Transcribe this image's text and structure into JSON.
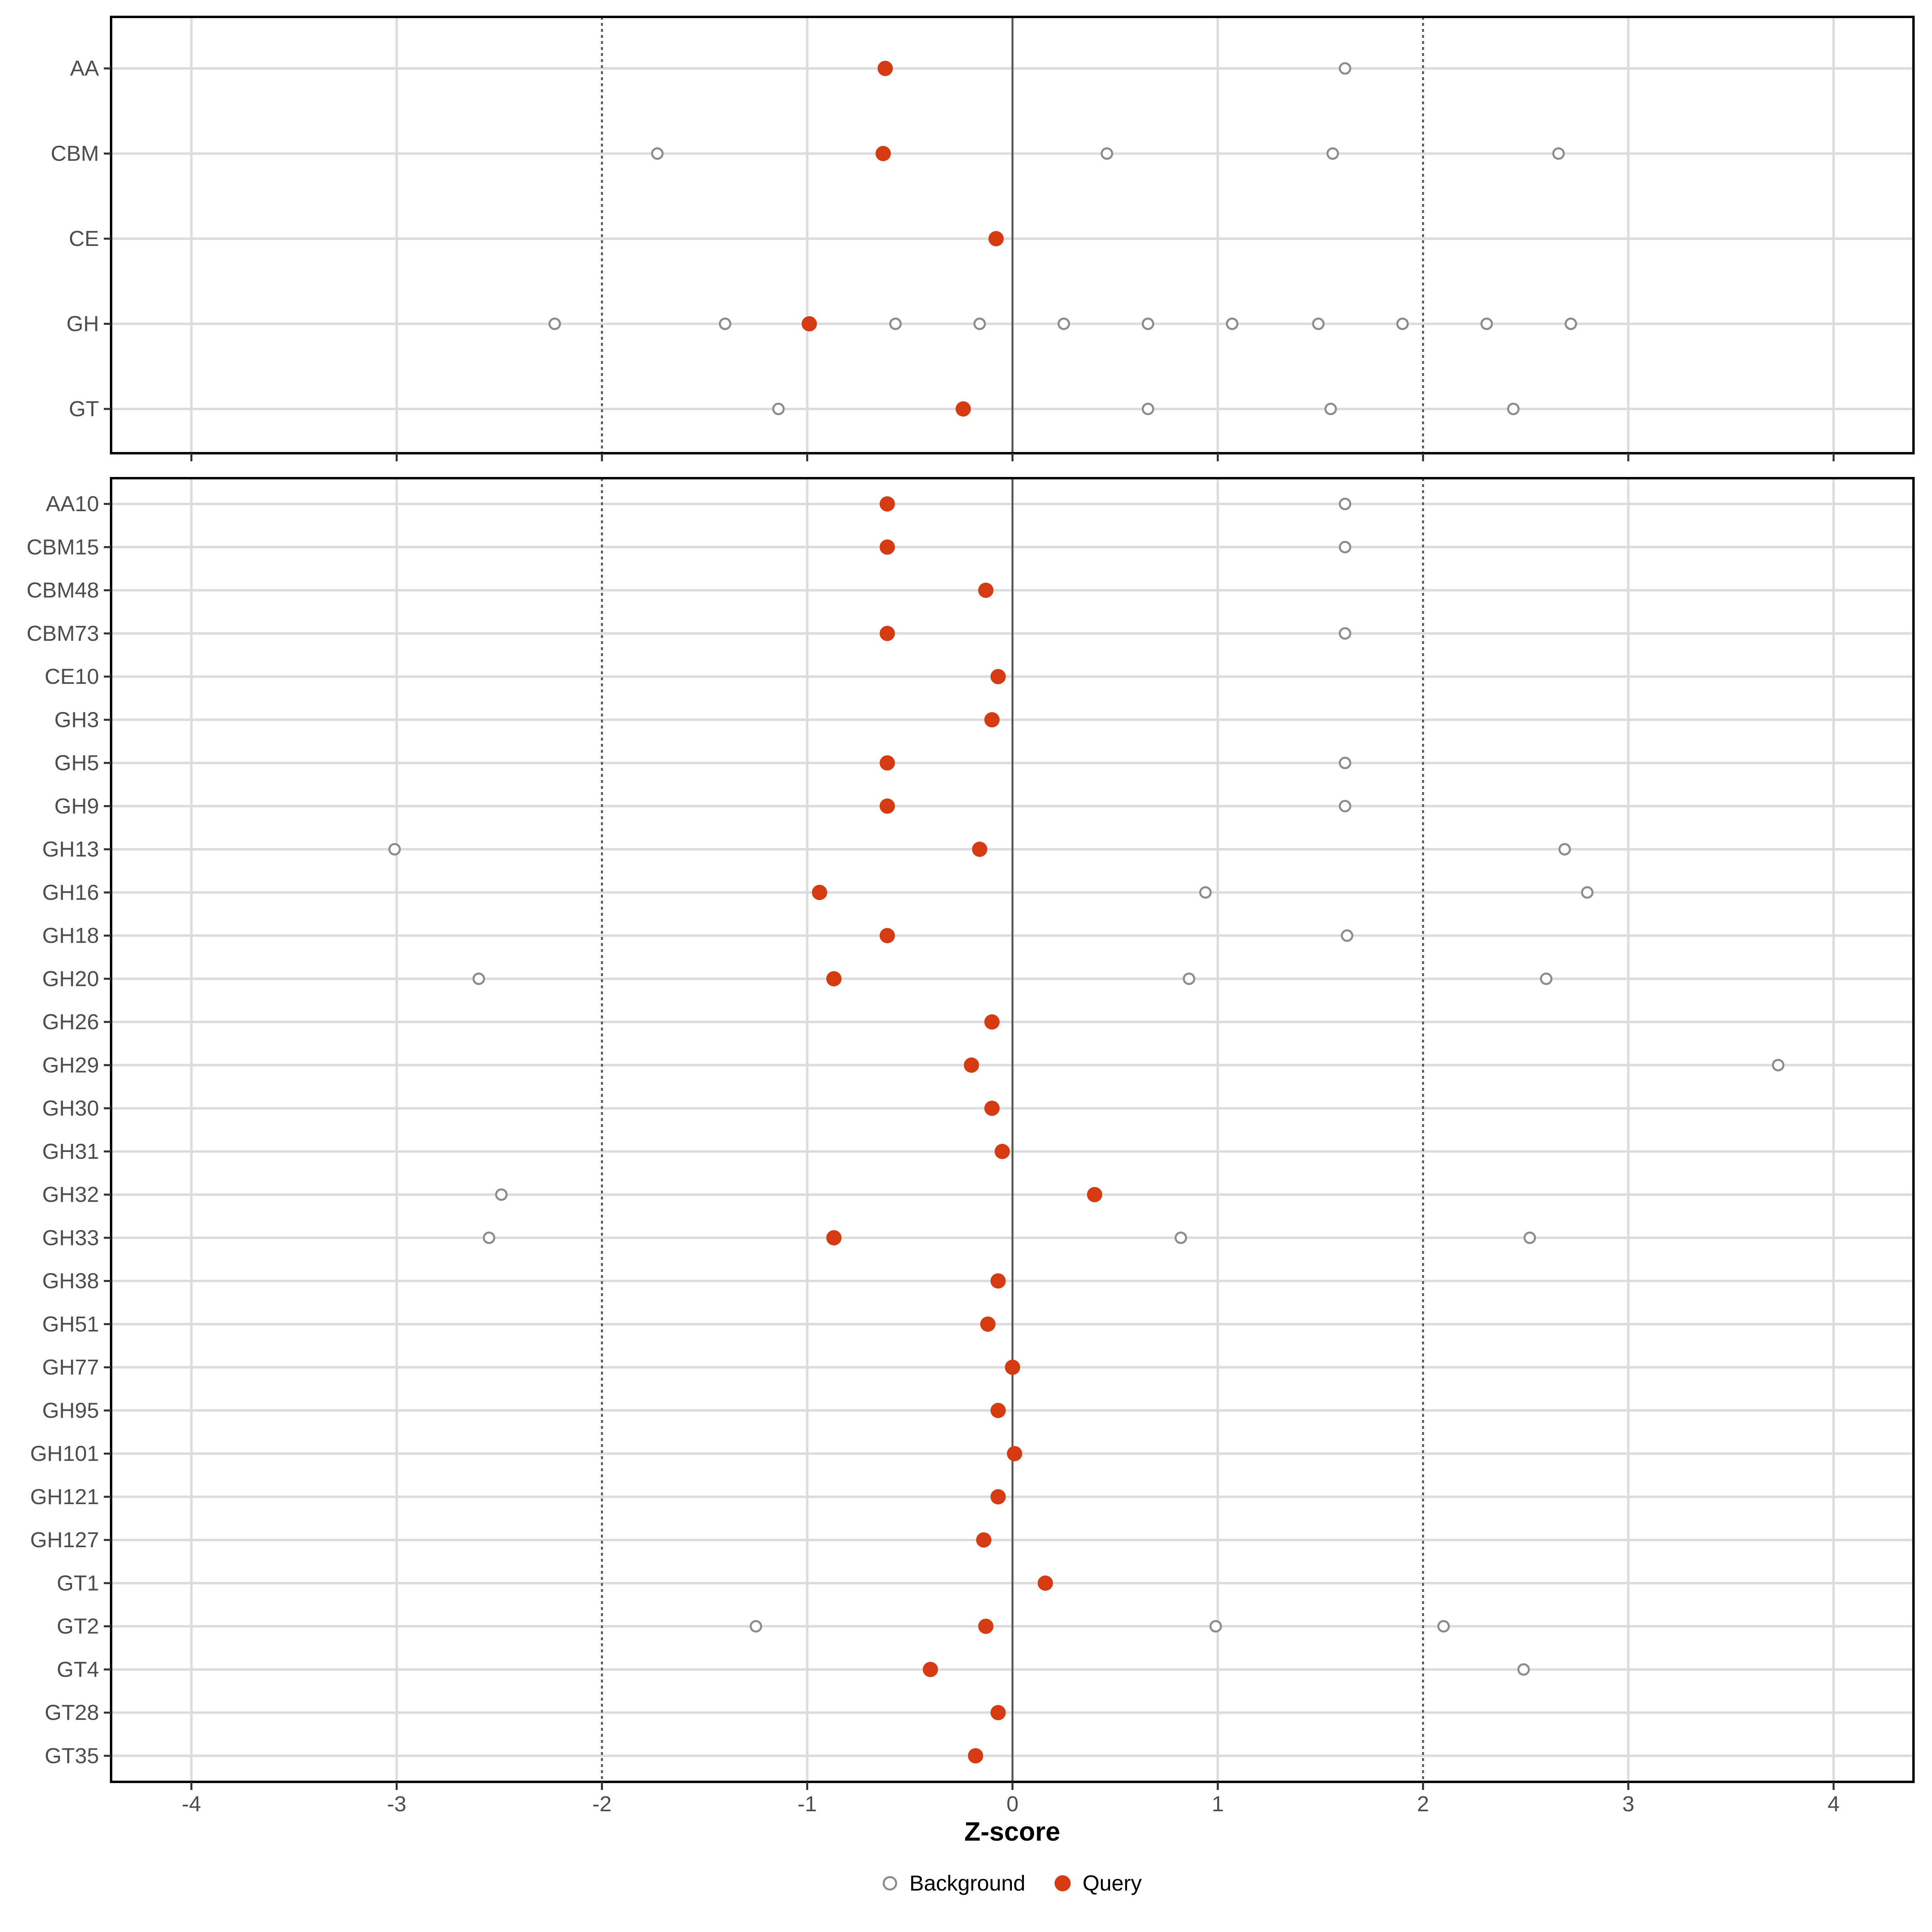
{
  "x_axis": {
    "label": "Z-score",
    "ticks": [
      -4,
      -3,
      -2,
      -1,
      0,
      1,
      2,
      3,
      4
    ],
    "xlim": [
      -4.39,
      4.39
    ],
    "zero_line": 0,
    "dashed_lines": [
      -2,
      2
    ]
  },
  "legend": {
    "position": "bottom",
    "items": [
      {
        "label": "Background",
        "marker": "open-circle",
        "color": "#8C8C8C"
      },
      {
        "label": "Query",
        "marker": "filled-circle",
        "color": "#D63A10"
      }
    ]
  },
  "colors": {
    "query": "#D63A10",
    "background_stroke": "#8C8C8C",
    "grid": "#DCDCDC",
    "reference_line": "#595959",
    "axis_text": "#4D4D4D",
    "panel_border": "#000000",
    "tick_mark": "#333333"
  },
  "chart_data": [
    {
      "type": "scatter",
      "panel": "cazyme-classes",
      "title": "",
      "xlabel": "Z-score",
      "xlim": [
        -4.39,
        4.39
      ],
      "grid": true,
      "categories": [
        "AA",
        "CBM",
        "CE",
        "GH",
        "GT"
      ],
      "series": [
        {
          "name": "Query",
          "values": [
            -0.62,
            -0.63,
            -0.08,
            -0.99,
            -0.24
          ]
        },
        {
          "name": "Background",
          "values_per_category": [
            [
              1.62
            ],
            [
              -1.73,
              0.46,
              1.56,
              2.66
            ],
            [],
            [
              -2.23,
              -1.4,
              -0.57,
              -0.16,
              0.25,
              0.66,
              1.07,
              1.49,
              1.9,
              2.31,
              2.72
            ],
            [
              -1.14,
              0.66,
              1.55,
              2.44
            ]
          ]
        }
      ]
    },
    {
      "type": "scatter",
      "panel": "cazyme-families",
      "title": "",
      "xlabel": "Z-score",
      "xlim": [
        -4.39,
        4.39
      ],
      "grid": true,
      "categories": [
        "AA10",
        "CBM15",
        "CBM48",
        "CBM73",
        "CE10",
        "GH3",
        "GH5",
        "GH9",
        "GH13",
        "GH16",
        "GH18",
        "GH20",
        "GH26",
        "GH29",
        "GH30",
        "GH31",
        "GH32",
        "GH33",
        "GH38",
        "GH51",
        "GH77",
        "GH95",
        "GH101",
        "GH121",
        "GH127",
        "GT1",
        "GT2",
        "GT4",
        "GT28",
        "GT35"
      ],
      "series": [
        {
          "name": "Query",
          "values": [
            -0.61,
            -0.61,
            -0.13,
            -0.61,
            -0.07,
            -0.1,
            -0.61,
            -0.61,
            -0.16,
            -0.94,
            -0.61,
            -0.87,
            -0.1,
            -0.2,
            -0.1,
            -0.05,
            0.4,
            -0.87,
            -0.07,
            -0.12,
            0.0,
            -0.07,
            0.01,
            -0.07,
            -0.14,
            0.16,
            -0.13,
            -0.4,
            -0.07,
            -0.18
          ]
        },
        {
          "name": "Background",
          "values_per_category": [
            [
              1.62
            ],
            [
              1.62
            ],
            [],
            [
              1.62
            ],
            [],
            [],
            [
              1.62
            ],
            [
              1.62
            ],
            [
              -3.01,
              2.69
            ],
            [
              0.94,
              2.8
            ],
            [
              1.63
            ],
            [
              -2.6,
              0.86,
              2.6
            ],
            [],
            [
              3.73
            ],
            [],
            [],
            [
              -2.49
            ],
            [
              -2.55,
              0.82,
              2.52
            ],
            [],
            [],
            [],
            [],
            [],
            [],
            [],
            [],
            [
              -1.25,
              0.99,
              2.1
            ],
            [
              2.49
            ],
            [],
            []
          ]
        }
      ]
    }
  ]
}
